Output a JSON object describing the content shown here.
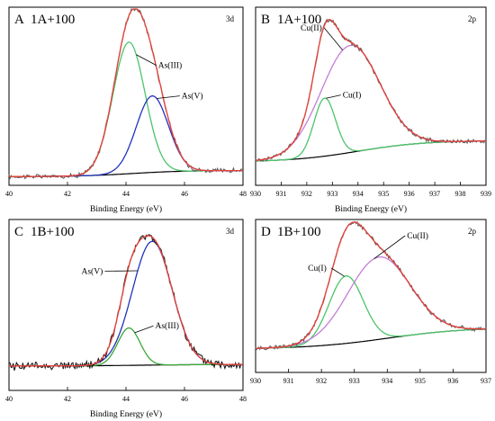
{
  "panels": [
    {
      "letter": "A",
      "title": "1A+100",
      "orbital": "3d",
      "xlabel": "Binding Energy (eV)",
      "xlim": [
        40,
        48
      ],
      "xticks": [
        40,
        42,
        44,
        46,
        48
      ],
      "peaks": [
        {
          "name": "As(III)",
          "color": "#4cc46a",
          "center": 44.1,
          "height": 0.86,
          "width": 0.55
        },
        {
          "name": "As(V)",
          "color": "#2233bb",
          "center": 44.9,
          "height": 0.5,
          "width": 0.55
        }
      ],
      "background": {
        "low": 0.01,
        "high": 0.05,
        "mid": 44.2,
        "steep": 0.9
      },
      "noise": 0.012,
      "annotations": [
        {
          "text": "As(III)",
          "target_x": 44.35,
          "peak_index": 0,
          "label_x": 45.1,
          "label_y": 0.72
        },
        {
          "text": "As(V)",
          "target_x": 45.05,
          "peak_index": 1,
          "label_x": 45.9,
          "label_y": 0.52
        }
      ]
    },
    {
      "letter": "B",
      "title": "1A+100",
      "orbital": "2p",
      "xlabel": "Binding Energy (eV)",
      "xlim": [
        930,
        939
      ],
      "xticks": [
        930,
        931,
        932,
        933,
        934,
        935,
        936,
        937,
        938,
        939
      ],
      "peaks": [
        {
          "name": "Cu(I)",
          "color": "#4cc46a",
          "center": 932.7,
          "height": 0.38,
          "width": 0.42
        },
        {
          "name": "Cu(II)",
          "color": "#c47ed8",
          "center": 933.7,
          "height": 0.7,
          "width": 1.15
        }
      ],
      "background": {
        "low": 0.0,
        "high": 0.14,
        "mid": 934.0,
        "steep": 1.3
      },
      "noise": 0.01,
      "annotations": [
        {
          "text": "Cu(II)",
          "target_x": 933.4,
          "peak_index": 1,
          "label_x": 931.9,
          "label_y": 0.86
        },
        {
          "text": "Cu(I)",
          "target_x": 932.75,
          "peak_index": 0,
          "label_x": 933.4,
          "label_y": 0.42
        }
      ]
    },
    {
      "letter": "C",
      "title": "1B+100",
      "orbital": "3d",
      "xlabel": "Binding Energy (eV)",
      "xlim": [
        40,
        48
      ],
      "xticks": [
        40,
        42,
        44,
        46,
        48
      ],
      "peaks": [
        {
          "name": "As(V)",
          "color": "#2233bb",
          "center": 44.9,
          "height": 0.86,
          "width": 0.68
        },
        {
          "name": "As(III)",
          "color": "#3aa838",
          "center": 44.1,
          "height": 0.26,
          "width": 0.38
        }
      ],
      "background": {
        "low": 0.02,
        "high": 0.03,
        "mid": 44.5,
        "steep": 1.0
      },
      "noise": 0.022,
      "annotations": [
        {
          "text": "As(V)",
          "target_x": 44.4,
          "peak_index": 0,
          "label_x": 42.6,
          "label_y": 0.66
        },
        {
          "text": "As(III)",
          "target_x": 44.3,
          "peak_index": 1,
          "label_x": 45.0,
          "label_y": 0.28
        }
      ]
    },
    {
      "letter": "D",
      "title": "1B+100",
      "orbital": "2p",
      "xlabel": "",
      "xlim": [
        930,
        937
      ],
      "xticks": [
        930,
        931,
        932,
        933,
        934,
        935,
        936,
        937
      ],
      "peaks": [
        {
          "name": "Cu(I)",
          "color": "#4cc46a",
          "center": 932.75,
          "height": 0.5,
          "width": 0.52
        },
        {
          "name": "Cu(II)",
          "color": "#c47ed8",
          "center": 933.75,
          "height": 0.61,
          "width": 0.95
        }
      ],
      "background": {
        "low": 0.0,
        "high": 0.16,
        "mid": 934.0,
        "steep": 1.2
      },
      "noise": 0.012,
      "annotations": [
        {
          "text": "Cu(I)",
          "target_x": 932.7,
          "peak_index": 0,
          "label_x": 931.7,
          "label_y": 0.58
        },
        {
          "text": "Cu(II)",
          "target_x": 933.6,
          "peak_index": 1,
          "label_x": 934.6,
          "label_y": 0.82
        }
      ]
    }
  ],
  "chart_data": [
    {
      "type": "line",
      "panel": "A",
      "xlabel": "Binding Energy (eV)",
      "xlim": [
        40,
        48
      ],
      "series": [
        {
          "name": "As(III)",
          "peak_center": 44.1
        },
        {
          "name": "As(V)",
          "peak_center": 44.9
        }
      ]
    },
    {
      "type": "line",
      "panel": "B",
      "xlabel": "Binding Energy (eV)",
      "xlim": [
        930,
        939
      ],
      "series": [
        {
          "name": "Cu(II)",
          "peak_center": 933.7
        },
        {
          "name": "Cu(I)",
          "peak_center": 932.7
        }
      ]
    },
    {
      "type": "line",
      "panel": "C",
      "xlabel": "Binding Energy (eV)",
      "xlim": [
        40,
        48
      ],
      "series": [
        {
          "name": "As(V)",
          "peak_center": 44.9
        },
        {
          "name": "As(III)",
          "peak_center": 44.1
        }
      ]
    },
    {
      "type": "line",
      "panel": "D",
      "xlim": [
        930,
        937
      ],
      "series": [
        {
          "name": "Cu(I)",
          "peak_center": 932.75
        },
        {
          "name": "Cu(II)",
          "peak_center": 933.75
        }
      ]
    }
  ],
  "colors": {
    "envelope": "#e8413a",
    "raw_dark": "#1a1a1a",
    "raw_gray": "#606060",
    "baseline": "#000000"
  }
}
